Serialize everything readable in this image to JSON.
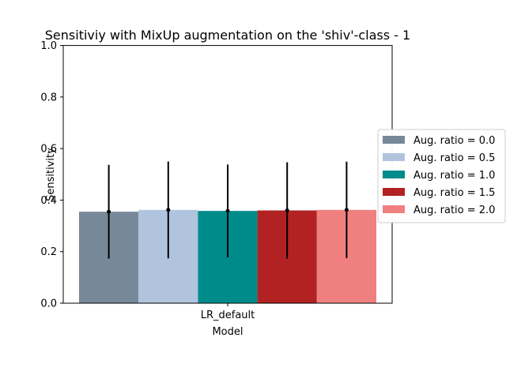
{
  "chart_data": {
    "type": "bar",
    "title": "Sensitiviy with MixUp augmentation on the 'shiv'-class - 1",
    "xlabel": "Model",
    "ylabel": "Sensitivity",
    "categories": [
      "LR_default"
    ],
    "ylim": [
      0,
      1.0
    ],
    "yticks": [
      "0.0",
      "0.2",
      "0.4",
      "0.6",
      "0.8",
      "1.0"
    ],
    "grid": false,
    "legend_position": "right",
    "series": [
      {
        "name": "Aug. ratio = 0.0",
        "color": "#778899",
        "values": [
          0.355
        ],
        "error": [
          0.182
        ]
      },
      {
        "name": "Aug. ratio = 0.5",
        "color": "#b0c4de",
        "values": [
          0.362
        ],
        "error": [
          0.188
        ]
      },
      {
        "name": "Aug. ratio = 1.0",
        "color": "#008b8b",
        "values": [
          0.358
        ],
        "error": [
          0.18
        ]
      },
      {
        "name": "Aug. ratio = 1.5",
        "color": "#b22222",
        "values": [
          0.36
        ],
        "error": [
          0.187
        ]
      },
      {
        "name": "Aug. ratio = 2.0",
        "color": "#f08080",
        "values": [
          0.362
        ],
        "error": [
          0.187
        ]
      }
    ]
  }
}
